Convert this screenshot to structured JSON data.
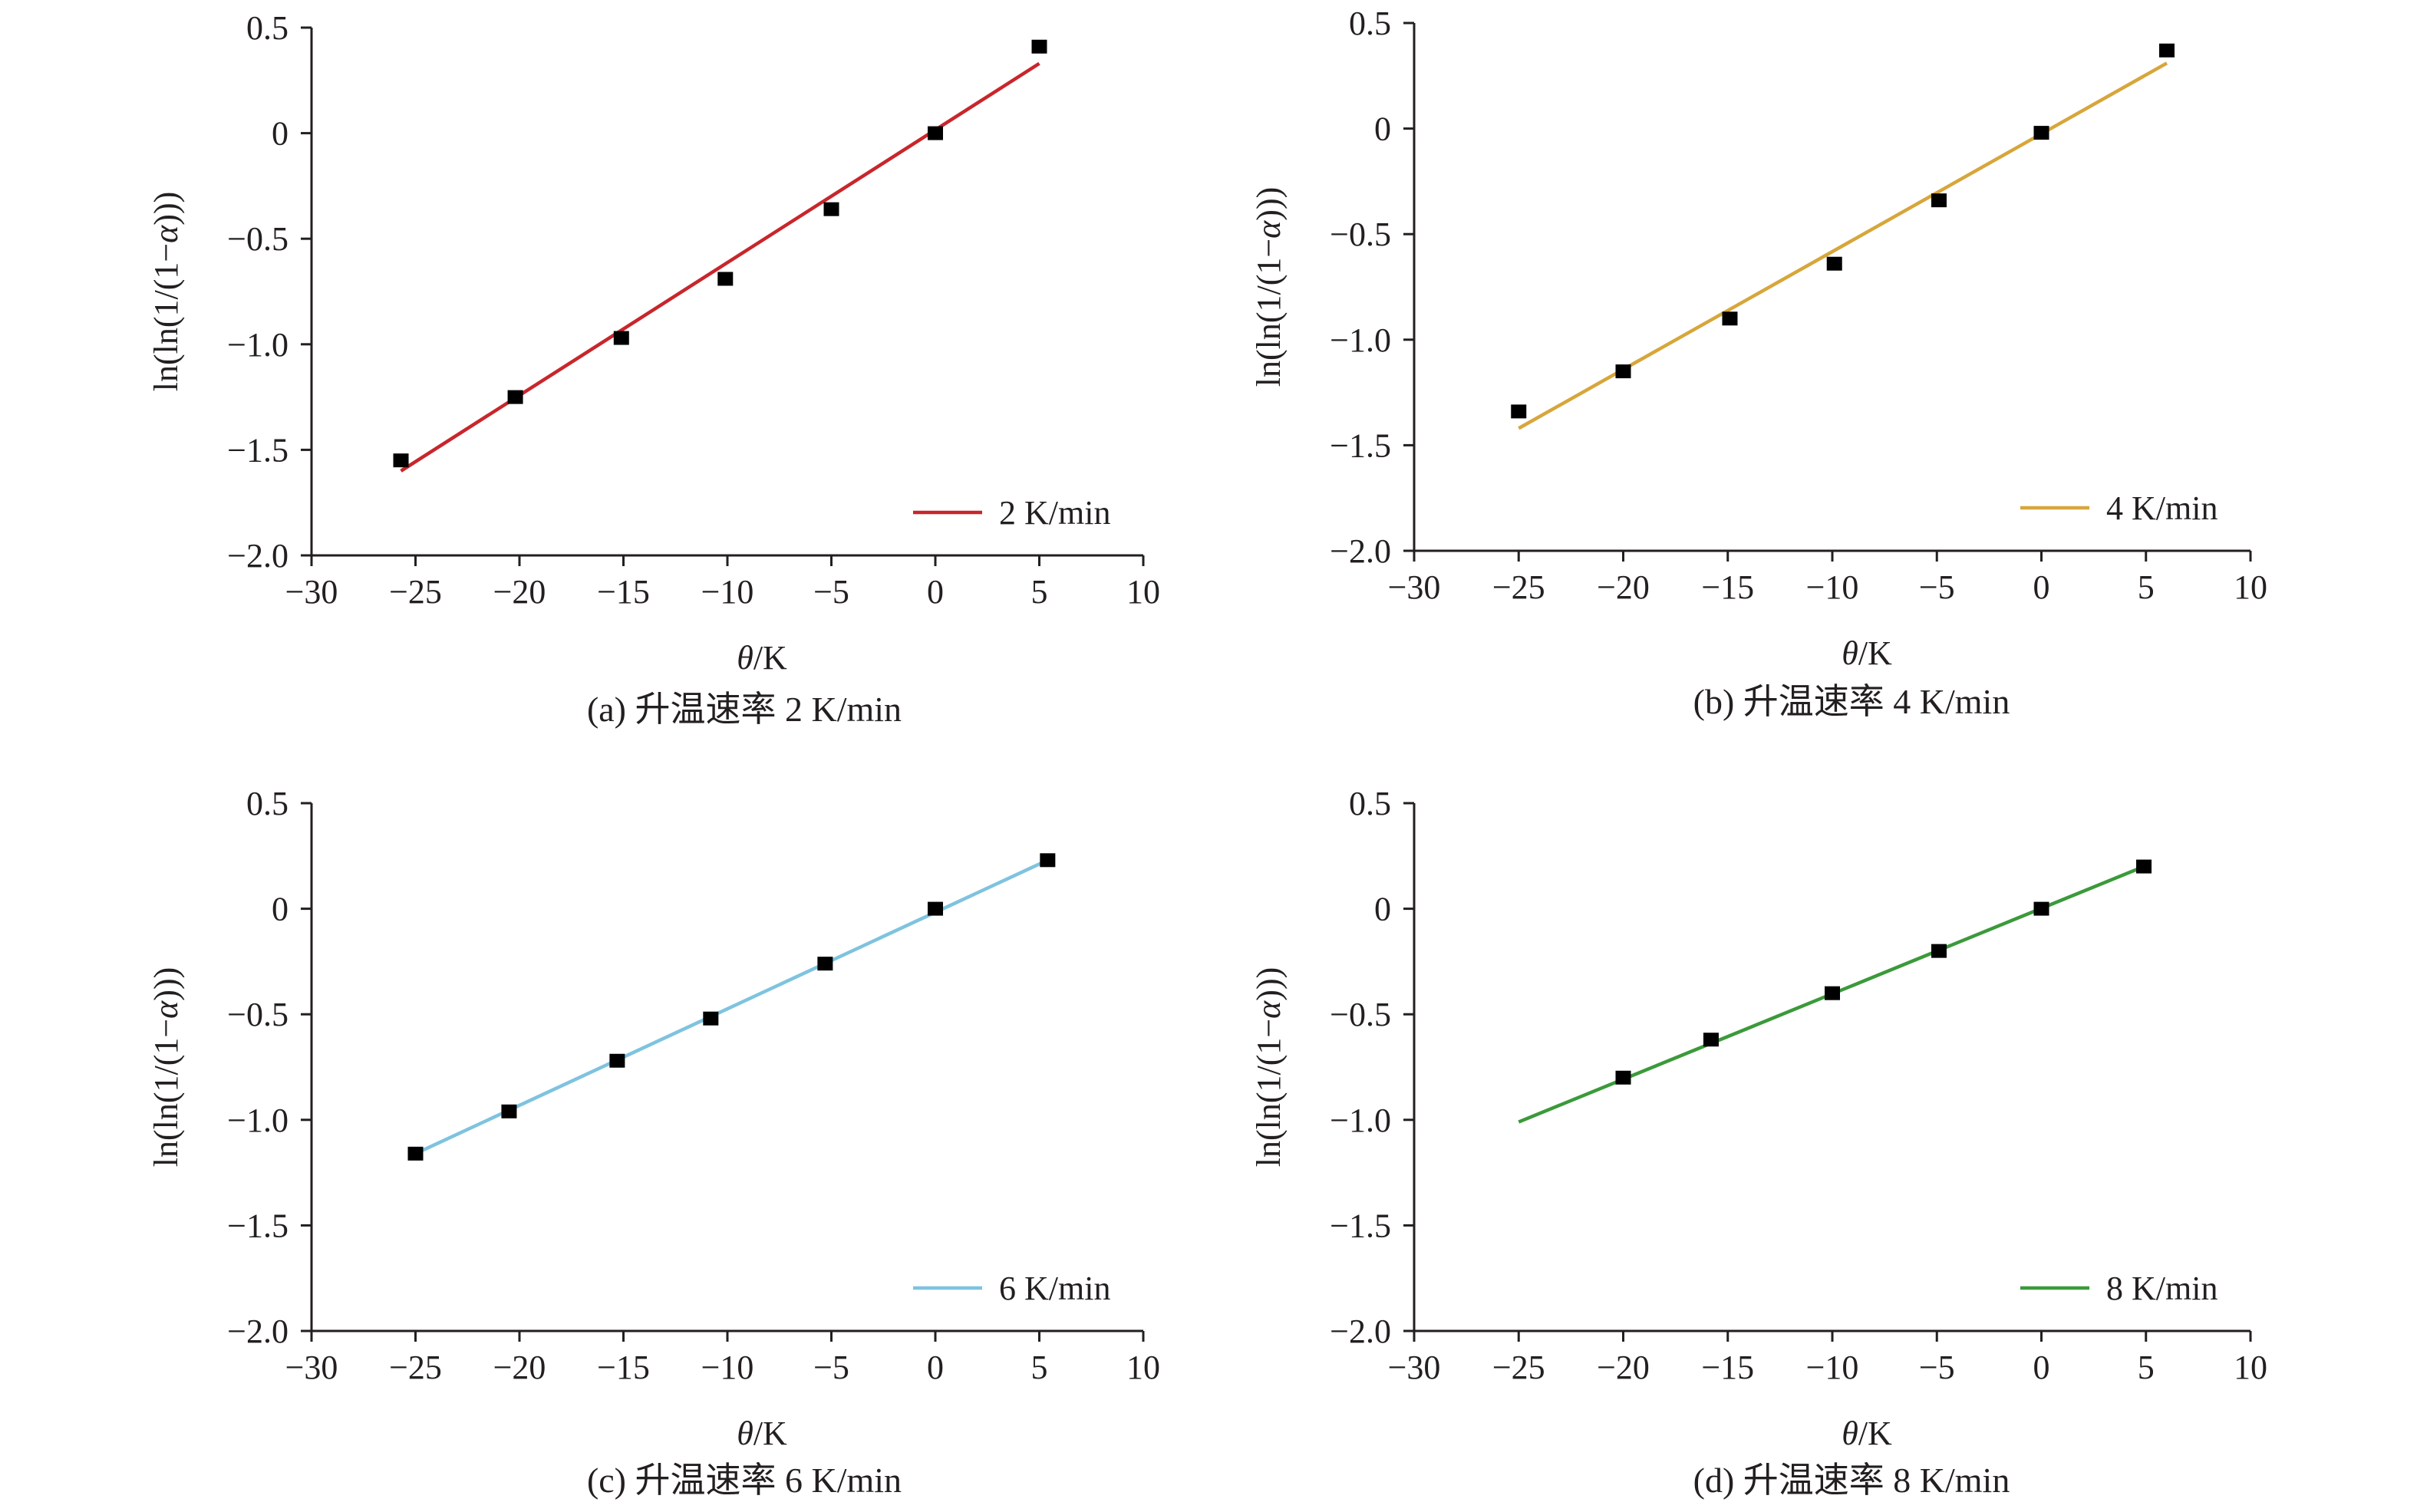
{
  "chart_data": [
    {
      "type": "scatter",
      "panel": "a",
      "caption": "(a) 升温速率 2 K/min",
      "xlabel_italic": "θ",
      "xlabel_rest": "/K",
      "ylabel_prefix": "ln(ln(1/(1−",
      "ylabel_italic": "α",
      "ylabel_suffix": ")))",
      "xlim": [
        -30,
        10
      ],
      "ylim": [
        -2.0,
        0.5
      ],
      "x_ticks": [
        -30,
        -25,
        -20,
        -15,
        -10,
        -5,
        0,
        5,
        10
      ],
      "x_tick_labels": [
        "−30",
        "−25",
        "−20",
        "−15",
        "−10",
        "−5",
        "0",
        "5",
        "10"
      ],
      "y_ticks": [
        0.5,
        0,
        -0.5,
        -1.0,
        -1.5,
        -2.0
      ],
      "y_tick_labels": [
        "0.5",
        "0",
        "−0.5",
        "−1.0",
        "−1.5",
        "−2.0"
      ],
      "grid": false,
      "legend_position": "bottom-right",
      "series": [
        {
          "name": "2 K/min",
          "color": "#c8262c",
          "points": [
            [
              -25.7,
              -1.55
            ],
            [
              -20.2,
              -1.25
            ],
            [
              -15.1,
              -0.97
            ],
            [
              -10.1,
              -0.69
            ],
            [
              -5.0,
              -0.36
            ],
            [
              0,
              0
            ],
            [
              5.0,
              0.41
            ]
          ],
          "fit_line": [
            [
              -25.7,
              -1.6
            ],
            [
              5.0,
              0.33
            ]
          ]
        }
      ]
    },
    {
      "type": "scatter",
      "panel": "b",
      "caption": "(b) 升温速率 4 K/min",
      "xlabel_italic": "θ",
      "xlabel_rest": "/K",
      "ylabel_prefix": "ln(ln(1/(1−",
      "ylabel_italic": "α",
      "ylabel_suffix": ")))",
      "xlim": [
        -30,
        10
      ],
      "ylim": [
        -2.0,
        0.5
      ],
      "x_ticks": [
        -30,
        -25,
        -20,
        -15,
        -10,
        -5,
        0,
        5,
        10
      ],
      "x_tick_labels": [
        "−30",
        "−25",
        "−20",
        "−15",
        "−10",
        "−5",
        "0",
        "5",
        "10"
      ],
      "y_ticks": [
        0.5,
        0,
        -0.5,
        -1.0,
        -1.5,
        -2.0
      ],
      "y_tick_labels": [
        "0.5",
        "0",
        "−0.5",
        "−1.0",
        "−1.5",
        "−2.0"
      ],
      "grid": false,
      "legend_position": "bottom-right",
      "series": [
        {
          "name": "4 K/min",
          "color": "#d7a63b",
          "points": [
            [
              -25.0,
              -1.34
            ],
            [
              -20.0,
              -1.15
            ],
            [
              -14.9,
              -0.9
            ],
            [
              -9.9,
              -0.64
            ],
            [
              -4.9,
              -0.34
            ],
            [
              0,
              -0.02
            ],
            [
              6.0,
              0.37
            ]
          ],
          "fit_line": [
            [
              -25.0,
              -1.42
            ],
            [
              6.0,
              0.31
            ]
          ]
        }
      ]
    },
    {
      "type": "scatter",
      "panel": "c",
      "caption": "(c) 升温速率 6 K/min",
      "xlabel_italic": "θ",
      "xlabel_rest": "/K",
      "ylabel_prefix": "ln(ln(1/(1−",
      "ylabel_italic": "α",
      "ylabel_suffix": ")))",
      "xlim": [
        -30,
        10
      ],
      "ylim": [
        -2.0,
        0.5
      ],
      "x_ticks": [
        -30,
        -25,
        -20,
        -15,
        -10,
        -5,
        0,
        5,
        10
      ],
      "x_tick_labels": [
        "−30",
        "−25",
        "−20",
        "−15",
        "−10",
        "−5",
        "0",
        "5",
        "10"
      ],
      "y_ticks": [
        0.5,
        0,
        -0.5,
        -1.0,
        -1.5,
        -2.0
      ],
      "y_tick_labels": [
        "0.5",
        "0",
        "−0.5",
        "−1.0",
        "−1.5",
        "−2.0"
      ],
      "grid": false,
      "legend_position": "bottom-right",
      "series": [
        {
          "name": "6 K/min",
          "color": "#7ec3df",
          "points": [
            [
              -25.0,
              -1.16
            ],
            [
              -20.5,
              -0.96
            ],
            [
              -15.3,
              -0.72
            ],
            [
              -10.8,
              -0.52
            ],
            [
              -5.3,
              -0.26
            ],
            [
              0,
              0
            ],
            [
              5.4,
              0.23
            ]
          ],
          "fit_line": [
            [
              -25.0,
              -1.16
            ],
            [
              5.4,
              0.23
            ]
          ]
        }
      ]
    },
    {
      "type": "scatter",
      "panel": "d",
      "caption": "(d) 升温速率 8 K/min",
      "xlabel_italic": "θ",
      "xlabel_rest": "/K",
      "ylabel_prefix": "ln(ln(1/(1−",
      "ylabel_italic": "α",
      "ylabel_suffix": ")))",
      "xlim": [
        -30,
        10
      ],
      "ylim": [
        -2.0,
        0.5
      ],
      "x_ticks": [
        -30,
        -25,
        -20,
        -15,
        -10,
        -5,
        0,
        5,
        10
      ],
      "x_tick_labels": [
        "−30",
        "−25",
        "−20",
        "−15",
        "−10",
        "−5",
        "0",
        "5",
        "10"
      ],
      "y_ticks": [
        0.5,
        0,
        -0.5,
        -1.0,
        -1.5,
        -2.0
      ],
      "y_tick_labels": [
        "0.5",
        "0",
        "−0.5",
        "−1.0",
        "−1.5",
        "−2.0"
      ],
      "grid": false,
      "legend_position": "bottom-right",
      "series": [
        {
          "name": "8 K/min",
          "color": "#3b9a3a",
          "points": [
            [
              -20.0,
              -0.8
            ],
            [
              -15.8,
              -0.62
            ],
            [
              -10.0,
              -0.4
            ],
            [
              -4.9,
              -0.2
            ],
            [
              0,
              0
            ],
            [
              4.9,
              0.2
            ]
          ],
          "fit_line": [
            [
              -25.0,
              -1.01
            ],
            [
              4.9,
              0.2
            ]
          ]
        }
      ]
    }
  ],
  "marker_color": "#000000"
}
